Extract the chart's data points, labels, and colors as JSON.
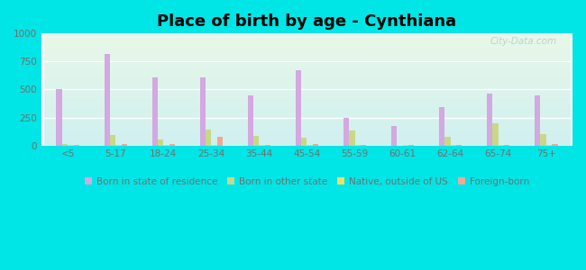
{
  "title": "Place of birth by age - Cynthiana",
  "categories": [
    "<5",
    "5-17",
    "18-24",
    "25-34",
    "35-44",
    "45-54",
    "55-59",
    "60-61",
    "62-64",
    "65-74",
    "75+"
  ],
  "series": {
    "Born in state of residence": [
      500,
      820,
      610,
      610,
      450,
      670,
      245,
      175,
      340,
      460,
      450
    ],
    "Born in other state": [
      10,
      90,
      55,
      140,
      85,
      70,
      130,
      0,
      75,
      200,
      100
    ],
    "Native, outside of US": [
      3,
      3,
      3,
      3,
      3,
      3,
      3,
      3,
      3,
      3,
      3
    ],
    "Foreign-born": [
      8,
      12,
      12,
      75,
      8,
      12,
      3,
      3,
      8,
      8,
      12
    ]
  },
  "colors": {
    "Born in state of residence": "#d4a8e0",
    "Born in other state": "#c8d888",
    "Native, outside of US": "#f0e060",
    "Foreign-born": "#f0a898"
  },
  "ylim": [
    0,
    1000
  ],
  "yticks": [
    0,
    250,
    500,
    750,
    1000
  ],
  "background_color": "#00e5e5",
  "bar_width": 0.12,
  "title_fontsize": 13,
  "tick_fontsize": 7.5,
  "legend_fontsize": 7.5,
  "watermark": "City-Data.com",
  "bg_gradient_colors": [
    "#e8f5e8",
    "#e0f0ee",
    "#d8eef4"
  ],
  "grid_color": "#ffffff",
  "tick_color": "#707070"
}
